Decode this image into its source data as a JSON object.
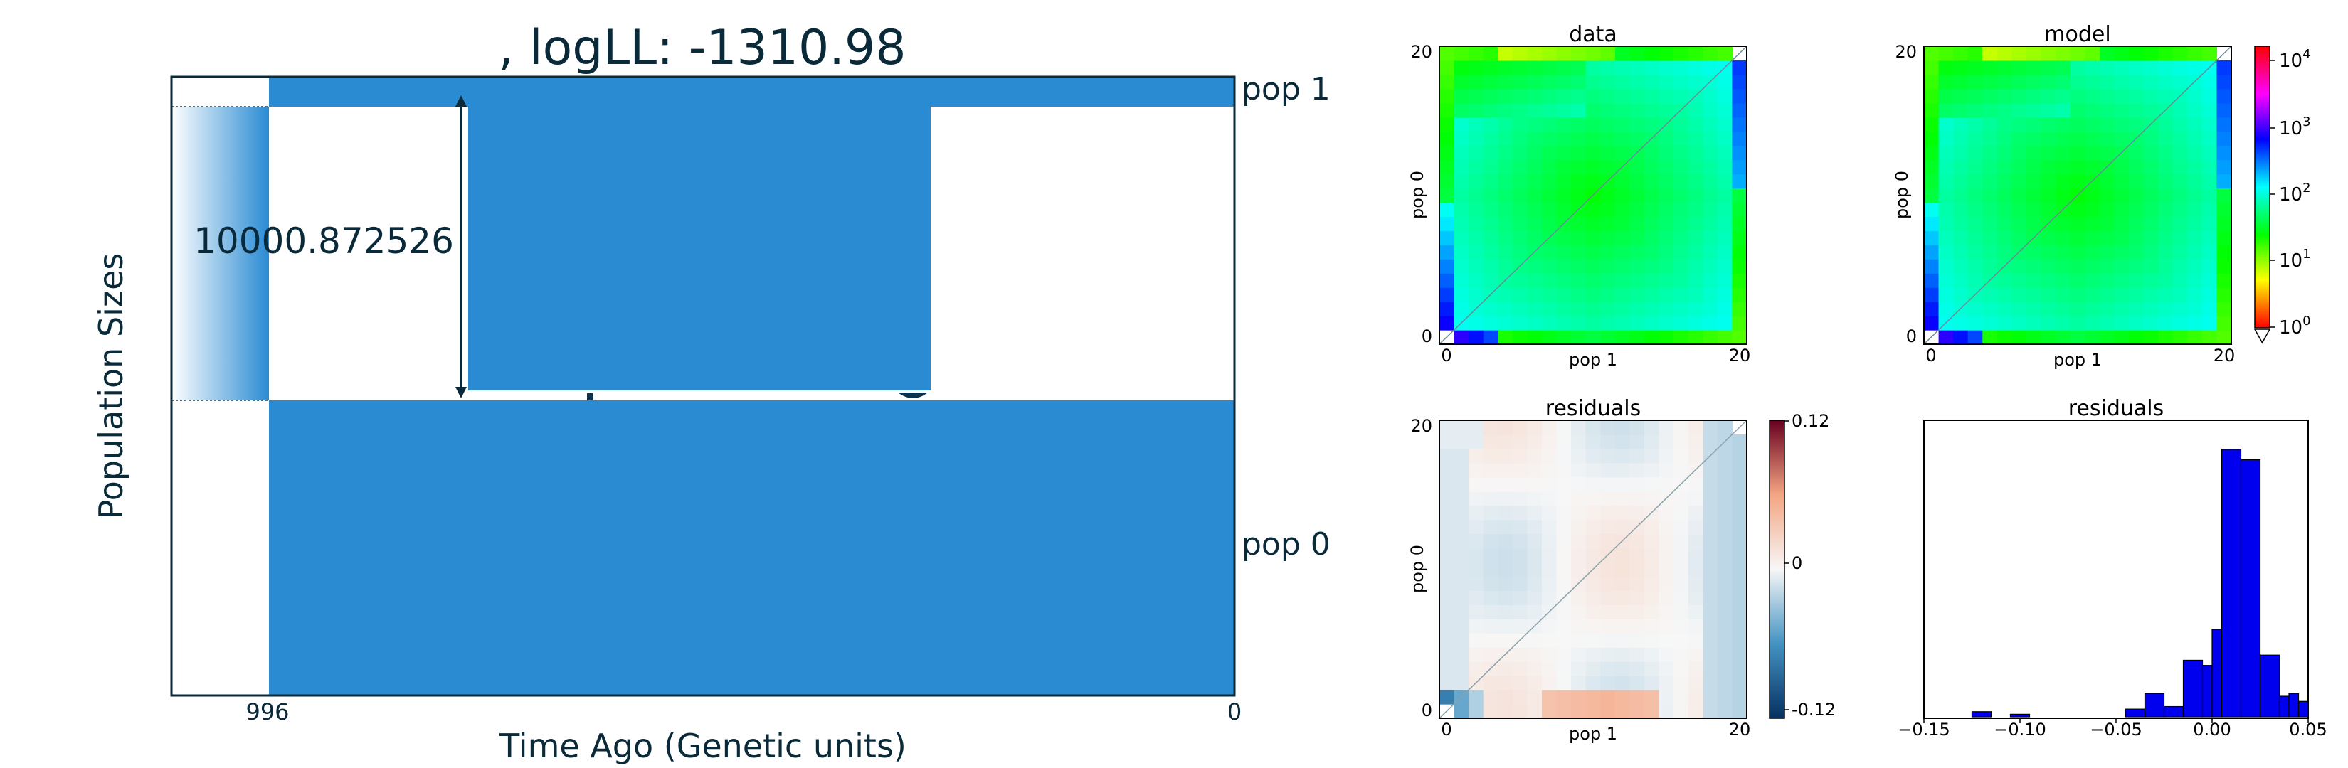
{
  "colors": {
    "pop_fill": "#2a8bd3",
    "frame": "#0a2a3a",
    "text_dark": "#0a2a3a",
    "hist_bar": "#0000ee"
  },
  "chart_data": [
    {
      "id": "demography",
      "type": "area",
      "title": ", logLL:   -1310.98",
      "xlabel": "Time Ago (Genetic units)",
      "ylabel": "Population Sizes",
      "x_ticks": [
        "996",
        "0"
      ],
      "populations": [
        "pop 1",
        "pop 0"
      ],
      "size_annotation": "10000.872526"
    },
    {
      "id": "sfs-data",
      "type": "heatmap",
      "title": "data",
      "xlabel": "pop 1",
      "ylabel": "pop 0",
      "x_ticks": [
        "0",
        "20"
      ],
      "y_ticks": [
        "0",
        "20"
      ],
      "scale": "log",
      "colormap": "hsv"
    },
    {
      "id": "sfs-model",
      "type": "heatmap",
      "title": "model",
      "xlabel": "pop 1",
      "ylabel": "pop 0",
      "x_ticks": [
        "0",
        "20"
      ],
      "y_ticks": [
        "0",
        "20"
      ],
      "scale": "log",
      "colorbar_ticks": [
        {
          "base": "10",
          "exp": "4"
        },
        {
          "base": "10",
          "exp": "3"
        },
        {
          "base": "10",
          "exp": "2"
        },
        {
          "base": "10",
          "exp": "1"
        },
        {
          "base": "10",
          "exp": "0"
        }
      ]
    },
    {
      "id": "sfs-residuals",
      "type": "heatmap",
      "title": "residuals",
      "xlabel": "pop 1",
      "ylabel": "pop 0",
      "x_ticks": [
        "0",
        "20"
      ],
      "y_ticks": [
        "0",
        "20"
      ],
      "colorbar_ticks": [
        "0.12",
        "0",
        "-0.12"
      ],
      "range": [
        -0.12,
        0.12
      ],
      "colormap": "RdBu"
    },
    {
      "id": "residual-histogram",
      "type": "bar",
      "title": "residuals",
      "x_ticks": [
        "−0.15",
        "−0.10",
        "−0.05",
        "0.00",
        "0.05"
      ],
      "xlim": [
        -0.15,
        0.05
      ],
      "bins": [
        {
          "x0": -0.125,
          "x1": -0.115,
          "count": 1
        },
        {
          "x0": -0.105,
          "x1": -0.095,
          "count": 0.5
        },
        {
          "x0": -0.045,
          "x1": -0.035,
          "count": 1.5
        },
        {
          "x0": -0.035,
          "x1": -0.025,
          "count": 4.5
        },
        {
          "x0": -0.025,
          "x1": -0.015,
          "count": 2
        },
        {
          "x0": -0.015,
          "x1": -0.005,
          "count": 11
        },
        {
          "x0": -0.005,
          "x1": 0.0,
          "count": 10
        },
        {
          "x0": 0.0,
          "x1": 0.005,
          "count": 17
        },
        {
          "x0": 0.005,
          "x1": 0.015,
          "count": 52
        },
        {
          "x0": 0.015,
          "x1": 0.025,
          "count": 50
        },
        {
          "x0": 0.025,
          "x1": 0.035,
          "count": 12
        },
        {
          "x0": 0.035,
          "x1": 0.04,
          "count": 4
        },
        {
          "x0": 0.04,
          "x1": 0.045,
          "count": 4.5
        },
        {
          "x0": 0.045,
          "x1": 0.05,
          "count": 3
        }
      ],
      "ymax": 56
    }
  ]
}
